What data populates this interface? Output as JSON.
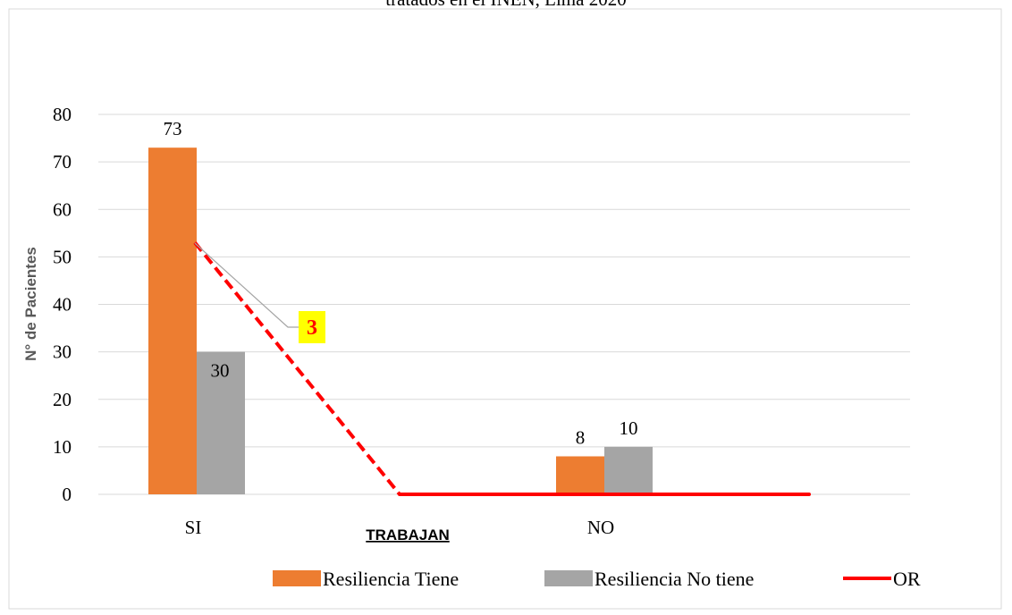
{
  "chart_data": {
    "type": "bar",
    "title": "tratados en el INEN, Lima 2020",
    "xlabel": "TRABAJAN",
    "ylabel": "N° de Pacientes",
    "categories": [
      "SI",
      "NO"
    ],
    "ylim": [
      0,
      80
    ],
    "yticks": [
      "0",
      "10",
      "20",
      "30",
      "40",
      "50",
      "60",
      "70",
      "80"
    ],
    "grid": true,
    "legend_position": "bottom-right",
    "series": [
      {
        "name": "Resiliencia Tiene",
        "values": [
          73,
          8
        ],
        "labels": [
          "73",
          "8"
        ],
        "color": "#ED7D31"
      },
      {
        "name": "Resiliencia No tiene",
        "values": [
          30,
          10
        ],
        "labels": [
          "30",
          "10"
        ],
        "color": "#A5A5A5"
      }
    ],
    "line_series": {
      "name": "OR",
      "color": "#FF0000",
      "values": [
        53,
        0,
        0
      ],
      "x_positions": [
        "SI",
        "between",
        "NO-end"
      ],
      "annotation": "3",
      "annotation_bg": "#FFFF00"
    }
  }
}
